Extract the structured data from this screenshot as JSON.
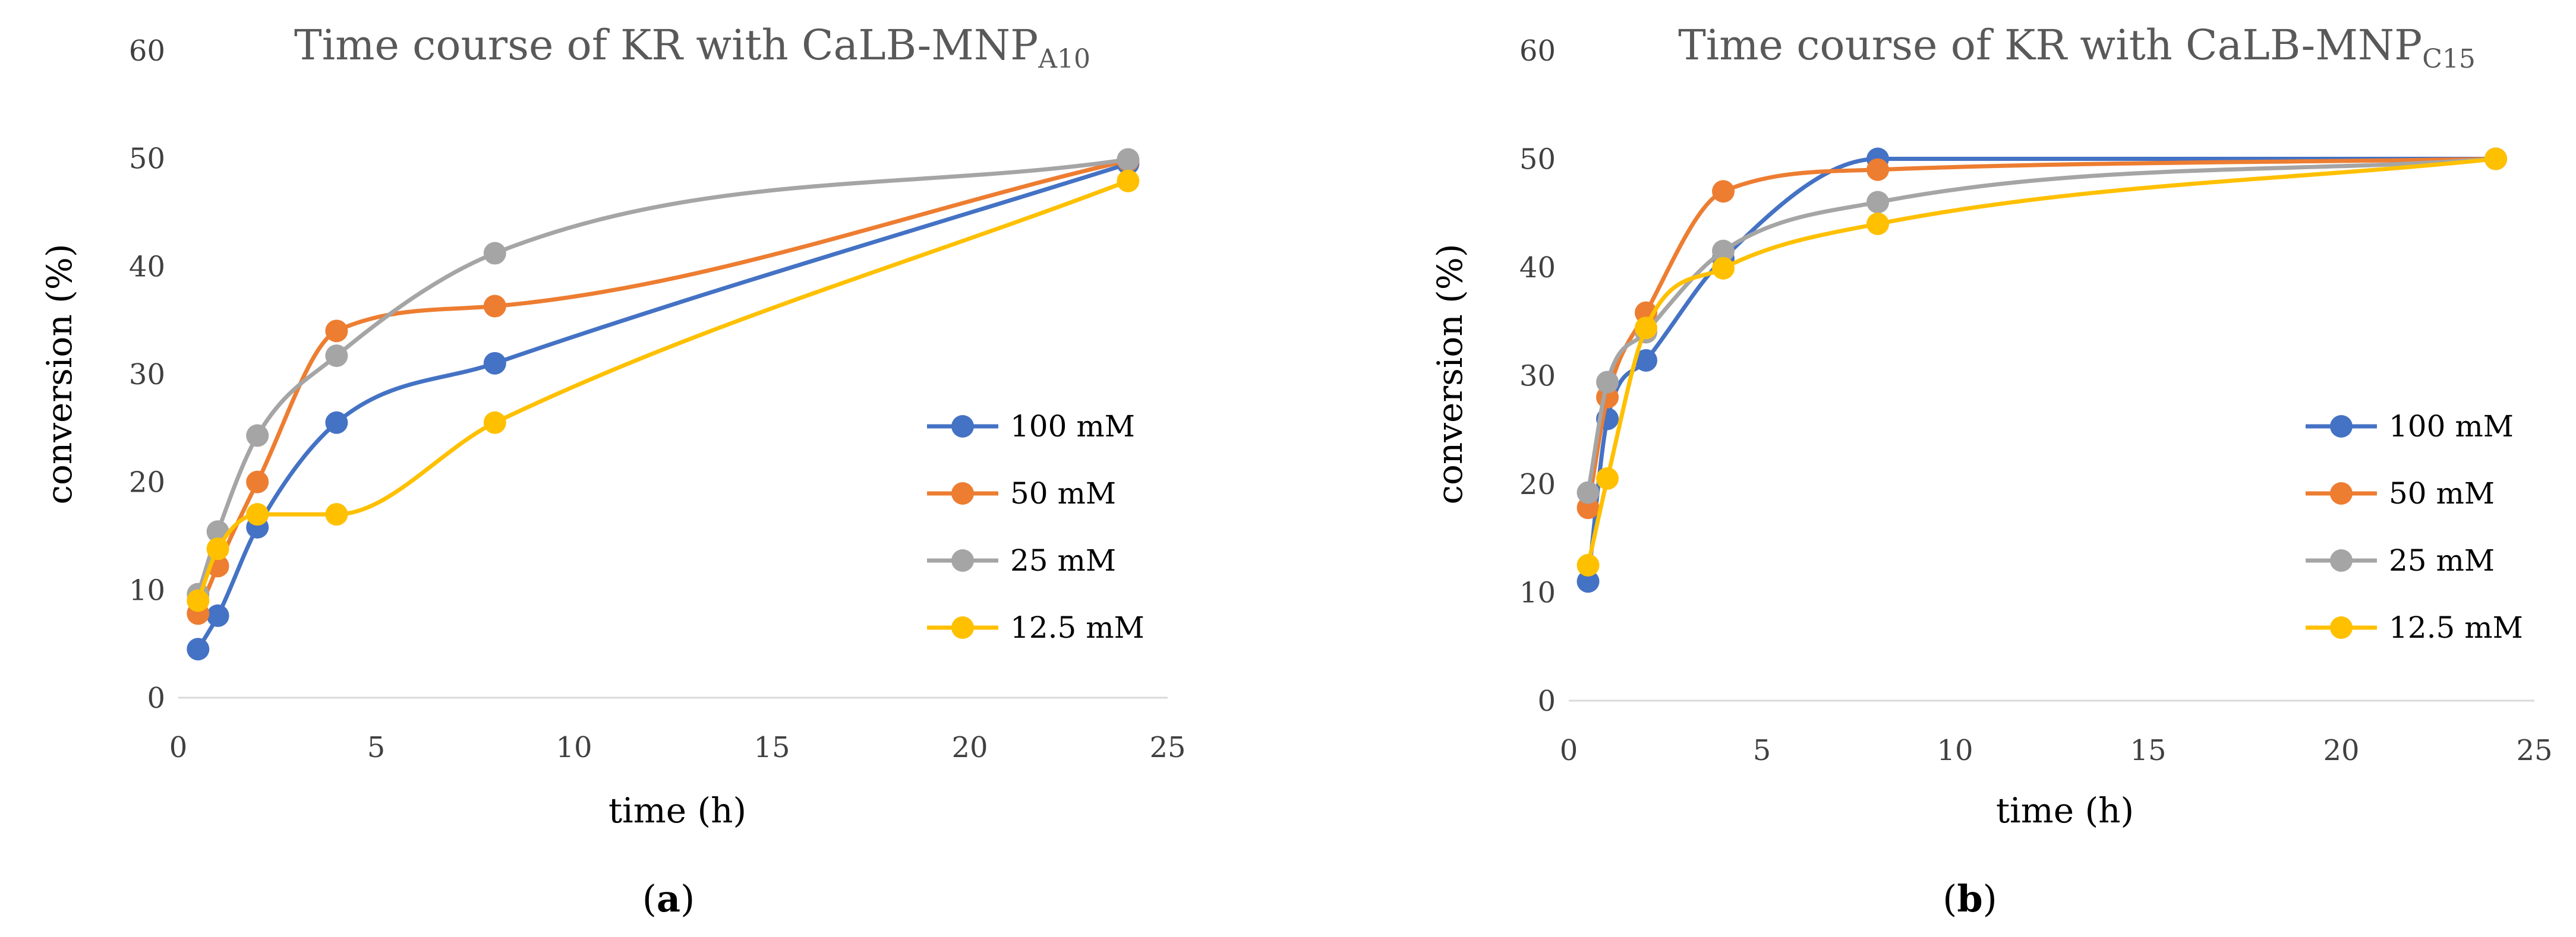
{
  "chart_data": [
    {
      "type": "line",
      "title": "Time course of KR with CaLB-MNP",
      "title_subscript": "A10",
      "xlabel": "time (h)",
      "ylabel": "conversion (%)",
      "xlim": [
        0,
        25
      ],
      "ylim": [
        0,
        60
      ],
      "xticks": [
        0,
        5,
        10,
        15,
        20,
        25
      ],
      "yticks": [
        0,
        10,
        20,
        30,
        40,
        50,
        60
      ],
      "grid": false,
      "legend": "right",
      "x": [
        0.5,
        1,
        2,
        4,
        8,
        24
      ],
      "series": [
        {
          "name": "100 mM",
          "color": "#4472C4",
          "values": [
            4.5,
            7.6,
            15.8,
            25.5,
            31.0,
            49.5
          ]
        },
        {
          "name": "50 mM",
          "color": "#ED7D31",
          "values": [
            7.8,
            12.2,
            20.0,
            34.0,
            36.3,
            49.8
          ]
        },
        {
          "name": "25 mM",
          "color": "#A5A5A5",
          "values": [
            9.6,
            15.4,
            24.3,
            31.7,
            41.2,
            49.9
          ]
        },
        {
          "name": "12.5 mM",
          "color": "#FFC000",
          "values": [
            9.0,
            13.8,
            17.0,
            17.0,
            25.5,
            47.9
          ]
        }
      ],
      "panel_label": {
        "open": "(",
        "letter": "a",
        "close": ")"
      }
    },
    {
      "type": "line",
      "title": "Time course of KR with CaLB-MNP",
      "title_subscript": "C15",
      "xlabel": "time (h)",
      "ylabel": "conversion (%)",
      "xlim": [
        0,
        25
      ],
      "ylim": [
        0,
        60
      ],
      "xticks": [
        0,
        5,
        10,
        15,
        20,
        25
      ],
      "yticks": [
        0,
        10,
        20,
        30,
        40,
        50,
        60
      ],
      "grid": false,
      "legend": "right",
      "x": [
        0.5,
        1,
        2,
        4,
        8,
        24
      ],
      "series": [
        {
          "name": "100 mM",
          "color": "#4472C4",
          "values": [
            11.0,
            26.0,
            31.4,
            40.8,
            50.0,
            50.0
          ]
        },
        {
          "name": "50 mM",
          "color": "#ED7D31",
          "values": [
            17.8,
            28.0,
            35.8,
            47.0,
            49.0,
            50.0
          ]
        },
        {
          "name": "25 mM",
          "color": "#A5A5A5",
          "values": [
            19.2,
            29.4,
            34.0,
            41.5,
            46.0,
            50.0
          ]
        },
        {
          "name": "12.5 mM",
          "color": "#FFC000",
          "values": [
            12.5,
            20.5,
            34.4,
            39.9,
            44.0,
            50.0
          ]
        }
      ],
      "panel_label": {
        "open": "(",
        "letter": "b",
        "close": ")"
      }
    }
  ]
}
